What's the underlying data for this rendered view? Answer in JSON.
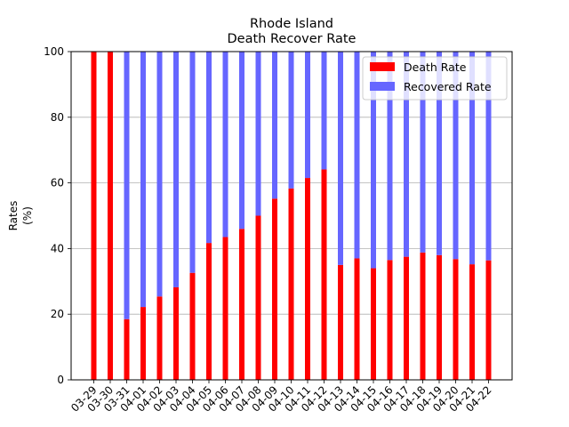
{
  "chart_data": {
    "type": "bar",
    "stacked": true,
    "title": "Rhode Island",
    "subtitle": "Death Recover Rate",
    "xlabel": "",
    "ylabel": "Rates",
    "ylabel_unit": "(%)",
    "ylim": [
      0,
      100
    ],
    "yticks": [
      0,
      20,
      40,
      60,
      80,
      100
    ],
    "grid": "y",
    "legend_position": "top-right",
    "categories": [
      "03-29",
      "03-30",
      "03-31",
      "04-01",
      "04-02",
      "04-03",
      "04-04",
      "04-05",
      "04-06",
      "04-07",
      "04-08",
      "04-09",
      "04-10",
      "04-11",
      "04-12",
      "04-13",
      "04-14",
      "04-15",
      "04-16",
      "04-17",
      "04-18",
      "04-19",
      "04-20",
      "04-21",
      "04-22"
    ],
    "series": [
      {
        "name": "Death Rate",
        "color": "#ff0000",
        "values": [
          100,
          100,
          18.5,
          22.2,
          25.4,
          28.2,
          32.6,
          41.7,
          43.5,
          46.0,
          50.0,
          55.2,
          58.3,
          61.5,
          64.1,
          35.0,
          37.0,
          34.0,
          36.5,
          37.5,
          38.8,
          38.0,
          36.8,
          35.2,
          36.4
        ]
      },
      {
        "name": "Recovered Rate",
        "color": "#6666ff",
        "values": [
          0,
          0,
          81.5,
          77.8,
          74.6,
          71.8,
          67.4,
          58.3,
          56.5,
          54.0,
          50.0,
          44.8,
          41.7,
          38.5,
          35.9,
          65.0,
          63.0,
          66.0,
          63.5,
          62.5,
          61.2,
          62.0,
          63.2,
          64.8,
          63.6
        ]
      }
    ]
  }
}
